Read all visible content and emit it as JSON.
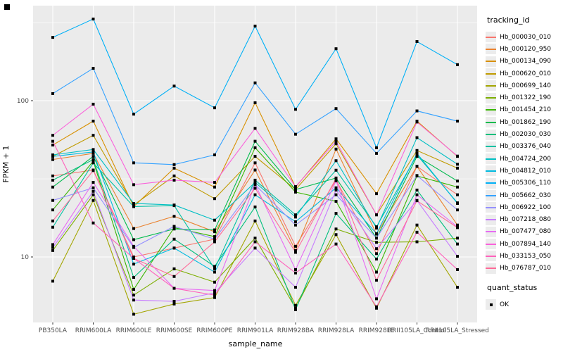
{
  "chart_data": {
    "type": "line",
    "title": "",
    "xlabel": "sample_name",
    "ylabel": "FPKM + 1",
    "y_scale": "log10",
    "ylim": [
      3.8,
      406
    ],
    "grid": true,
    "panel_bg": "#ebebeb",
    "grid_color": "#ffffff",
    "tick_label_color": "#4d4d4d",
    "legend_title": "tracking_id",
    "quant_legend_title": "quant_status",
    "quant_status_value": "OK",
    "point_shape": "black-square",
    "legend_position": "right",
    "categories": [
      "PB350LA",
      "RRIM600LA",
      "RRIM600LE",
      "RRIM600SE",
      "RRIM600PE",
      "RRIM901LA",
      "RRIM928BA",
      "RRIM928LA",
      "RRIM928LE",
      "RRII105LA_Control",
      "RRII105LA_Stressed"
    ],
    "yticks": [
      {
        "label": "100",
        "value": 100
      },
      {
        "label": "10",
        "value": 10
      }
    ],
    "y_minor_gridlines": [
      31.6,
      316
    ],
    "series": [
      {
        "name": "Hb_000030_010",
        "color": "#F8766D",
        "values": [
          33,
          36,
          10,
          11.4,
          13,
          40,
          11.7,
          31,
          10.5,
          38,
          25
        ]
      },
      {
        "name": "Hb_000120_950",
        "color": "#EA8331",
        "values": [
          42,
          46,
          15.2,
          18.2,
          14.5,
          36,
          11,
          49,
          14,
          38,
          16
        ]
      },
      {
        "name": "Hb_000134_090",
        "color": "#D89000",
        "values": [
          52,
          74,
          21,
          37,
          28,
          97,
          28,
          57,
          25.4,
          74,
          44
        ]
      },
      {
        "name": "Hb_000620_010",
        "color": "#C09B00",
        "values": [
          44,
          60,
          21.5,
          33,
          23.6,
          44,
          27,
          53,
          18.6,
          48,
          37
        ]
      },
      {
        "name": "Hb_000699_140",
        "color": "#A3A500",
        "values": [
          7,
          23,
          4.3,
          5,
          5.5,
          17,
          4.9,
          13.9,
          4.7,
          16,
          6.4
        ]
      },
      {
        "name": "Hb_001322_190",
        "color": "#7CAE00",
        "values": [
          11,
          25,
          5.7,
          8.4,
          6.9,
          13.2,
          4.7,
          15.1,
          12.4,
          12.5,
          13.2
        ]
      },
      {
        "name": "Hb_001454_210",
        "color": "#39B600",
        "values": [
          20,
          41,
          6.2,
          15.4,
          13.5,
          50,
          26,
          22.7,
          8,
          33,
          28
        ]
      },
      {
        "name": "Hb_001862_190",
        "color": "#00BB4E",
        "values": [
          28,
          44,
          12.9,
          15.1,
          14.9,
          55,
          27,
          32,
          13.2,
          44,
          30.6
        ]
      },
      {
        "name": "Hb_002030_030",
        "color": "#00BF7D",
        "values": [
          31,
          42,
          7.4,
          13,
          8.7,
          20.9,
          4.6,
          19,
          9.7,
          26.8,
          12.1
        ]
      },
      {
        "name": "Hb_003376_040",
        "color": "#00C1A3",
        "values": [
          15.5,
          40,
          21,
          21.3,
          8.4,
          31,
          18.6,
          35.9,
          15.6,
          45,
          22.2
        ]
      },
      {
        "name": "Hb_004724_200",
        "color": "#00BFC4",
        "values": [
          45,
          48.7,
          22,
          21.5,
          17.2,
          30,
          18,
          41.3,
          15.3,
          58,
          39.2
        ]
      },
      {
        "name": "Hb_004812_010",
        "color": "#00BAE0",
        "values": [
          44,
          47,
          9,
          11.4,
          8,
          25,
          16.8,
          27.7,
          14.1,
          46,
          22
        ]
      },
      {
        "name": "Hb_005306_110",
        "color": "#00B0F6",
        "values": [
          254,
          333,
          82,
          124,
          90,
          300,
          88,
          215,
          50,
          239,
          170
        ]
      },
      {
        "name": "Hb_005662_030",
        "color": "#35A2FF",
        "values": [
          111,
          161,
          40,
          39,
          45,
          130,
          61,
          89,
          46,
          86,
          74
        ]
      },
      {
        "name": "Hb_006922_100",
        "color": "#9590FF",
        "values": [
          23,
          27.7,
          11.5,
          15.7,
          13,
          29,
          16,
          25,
          13.2,
          33.2,
          20
        ]
      },
      {
        "name": "Hb_007218_080",
        "color": "#C77CFF",
        "values": [
          11.5,
          26.3,
          5.3,
          5.2,
          5.9,
          11.4,
          6.4,
          26.8,
          11.3,
          23,
          10.1
        ]
      },
      {
        "name": "Hb_007477_080",
        "color": "#E76BF3",
        "values": [
          12,
          30,
          11.7,
          6.3,
          6.1,
          29.2,
          8.3,
          30.7,
          5.4,
          25,
          15.6
        ]
      },
      {
        "name": "Hb_007894_140",
        "color": "#FA62DB",
        "values": [
          60,
          95,
          29,
          31,
          30,
          66.5,
          28.2,
          55,
          18.6,
          73,
          44.2
        ]
      },
      {
        "name": "Hb_033153_050",
        "color": "#FF62BC",
        "values": [
          55,
          16.5,
          9.8,
          6.3,
          5.7,
          12.5,
          7.9,
          12.1,
          4.8,
          14.4,
          8.3
        ]
      },
      {
        "name": "Hb_076787_010",
        "color": "#FF6A98",
        "values": [
          17,
          35.7,
          9.8,
          7.5,
          12.5,
          27.5,
          10.7,
          31.8,
          7.1,
          22.9,
          15.4
        ]
      }
    ]
  }
}
